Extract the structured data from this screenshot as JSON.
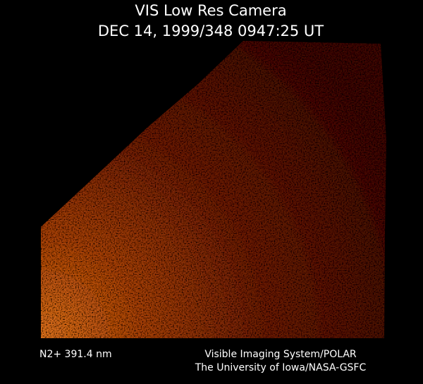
{
  "header": {
    "title": "VIS Low Res Camera",
    "timestamp": "DEC 14, 1999/348 0947:25 UT"
  },
  "footer": {
    "filter": "N2+ 391.4 nm",
    "credit_lines": [
      "Visible Imaging System/POLAR",
      "The University of Iowa/NASA-GSFC"
    ]
  }
}
